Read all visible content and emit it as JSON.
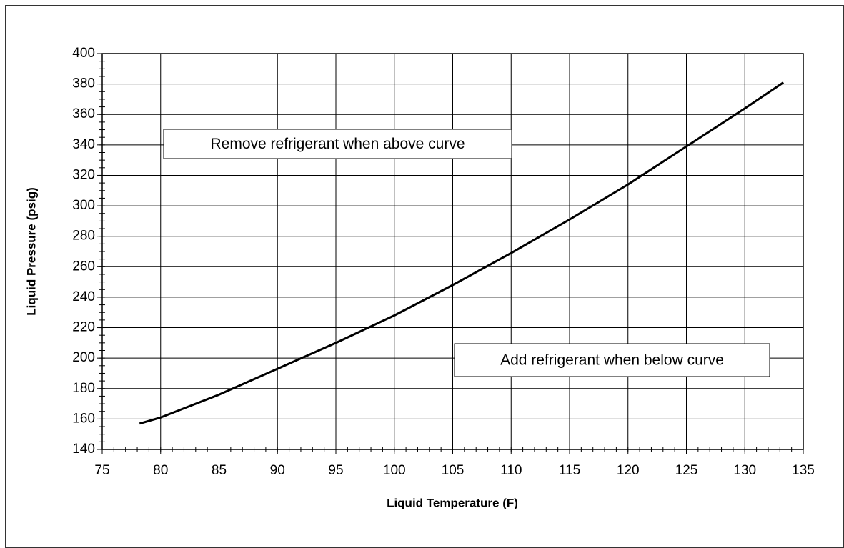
{
  "chart_data": {
    "type": "line",
    "x_label": "Liquid Temperature (F)",
    "y_label": "Liquid Pressure (psig)",
    "x": [
      78.2,
      80,
      85,
      90,
      95,
      100,
      105,
      110,
      115,
      120,
      125,
      130,
      133.3
    ],
    "values": [
      157,
      161,
      176,
      193,
      210,
      228,
      248,
      269,
      291,
      314,
      339,
      364,
      381
    ],
    "color": "#000000",
    "xlim": [
      75,
      135
    ],
    "xticks": [
      75,
      80,
      85,
      90,
      95,
      100,
      105,
      110,
      115,
      120,
      125,
      130,
      135
    ],
    "ylim": [
      140,
      400
    ],
    "yticks": [
      140,
      160,
      180,
      200,
      220,
      240,
      260,
      280,
      300,
      320,
      340,
      360,
      380,
      400
    ],
    "x_minor_step": 1,
    "y_minor_step": 5,
    "grid": true,
    "annotations": [
      {
        "text": "Remove refrigerant when above curve"
      },
      {
        "text": "Add refrigerant when below curve"
      }
    ]
  }
}
